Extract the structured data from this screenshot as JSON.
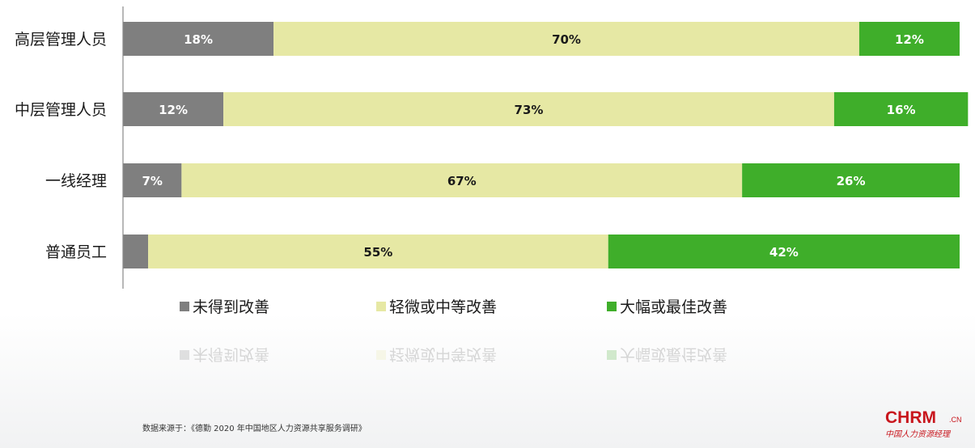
{
  "chart_data": {
    "type": "bar",
    "orientation": "horizontal",
    "stacked": true,
    "percent_stacked": true,
    "categories": [
      "高层管理人员",
      "中层管理人员",
      "一线经理",
      "普通员工"
    ],
    "series": [
      {
        "name": "未得到改善",
        "color": "#7f7f7f",
        "label_color": "#ffffff",
        "values": [
          18,
          12,
          7,
          3
        ],
        "labels": [
          "18%",
          "12%",
          "7%",
          ""
        ]
      },
      {
        "name": "轻微或中等改善",
        "color": "#e6e8a4",
        "label_color": "#1a1a1a",
        "values": [
          70,
          73,
          67,
          55
        ],
        "labels": [
          "70%",
          "73%",
          "67%",
          "55%"
        ]
      },
      {
        "name": "大幅或最佳改善",
        "color": "#3fae2a",
        "label_color": "#ffffff",
        "values": [
          12,
          16,
          26,
          42
        ],
        "labels": [
          "12%",
          "16%",
          "26%",
          "42%"
        ]
      }
    ],
    "xlim": [
      0,
      100
    ],
    "legend_position": "bottom",
    "grid": false
  },
  "source_text": "数据来源于：《德勤 2020 年中国地区人力资源共享服务调研》",
  "logo": {
    "main": "CHRM",
    "suffix": ".CN",
    "sub": "中国人力资源经理"
  }
}
